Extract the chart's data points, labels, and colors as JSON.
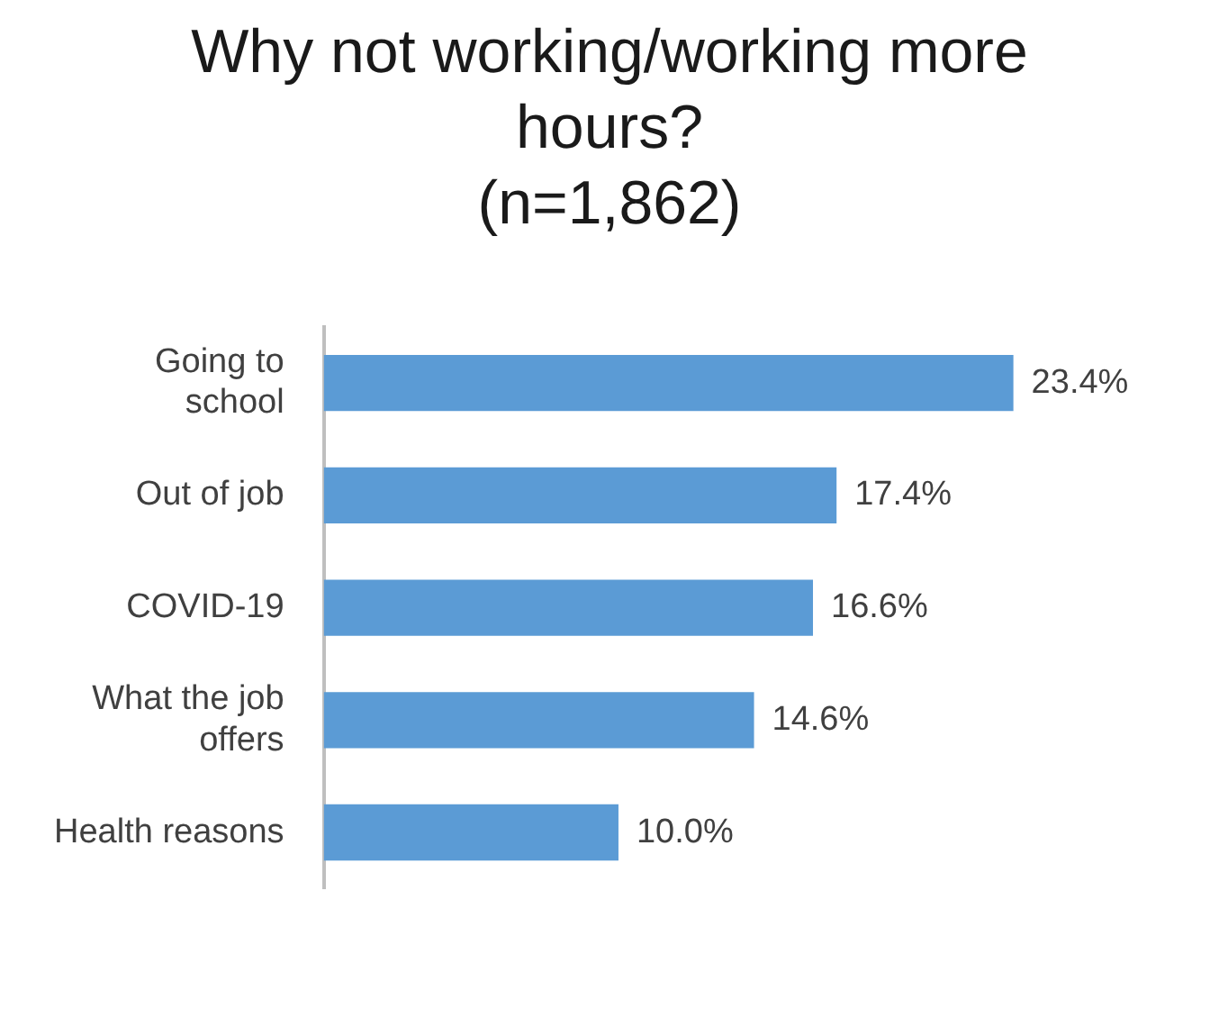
{
  "chart_data": {
    "type": "bar",
    "orientation": "horizontal",
    "title": "Why not working/working more hours?",
    "subtitle": "(n=1,862)",
    "categories": [
      "Going to school",
      "Out of job",
      "COVID-19",
      "What the job offers",
      "Health reasons"
    ],
    "values": [
      23.4,
      17.4,
      16.6,
      14.6,
      10.0
    ],
    "value_labels": [
      "23.4%",
      "17.4%",
      "16.6%",
      "14.6%",
      "10.0%"
    ],
    "color": "#5b9bd5",
    "grid": false,
    "legend": false
  }
}
